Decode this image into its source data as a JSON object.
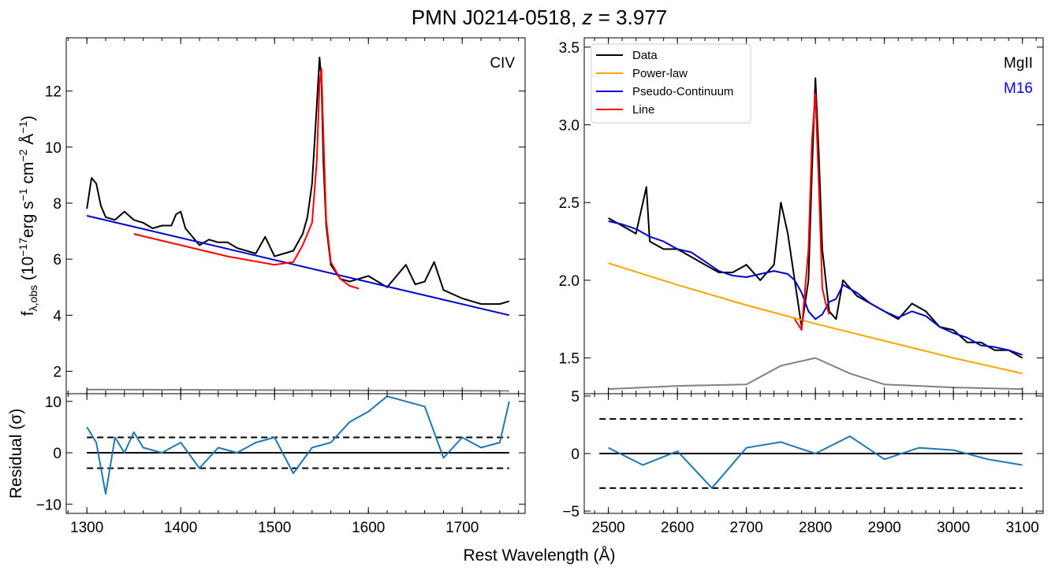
{
  "figure": {
    "title_main": "PMN J0214-0518, ",
    "title_z": "z",
    "title_eq": " = 3.977",
    "xlabel": "Rest Wavelength (Å)",
    "ylabel_top": "f",
    "ylabel_sub": "λ,obs",
    "ylabel_unit": " (10",
    "ylabel_exp1": "−17",
    "ylabel_rest1": "erg s",
    "ylabel_exp2": "−1",
    "ylabel_rest2": " cm",
    "ylabel_exp3": "−2",
    "ylabel_rest3": " Å",
    "ylabel_exp4": "−1",
    "ylabel_close": ")",
    "ylabel_resid": "Residual (σ)"
  },
  "colors": {
    "data": "#000000",
    "powerlaw": "#ffa500",
    "pseudo": "#0000cd",
    "line": "#ff0000",
    "broad": "#008000",
    "error": "#808080",
    "residual": "#1f77b4",
    "m16": "#0000ff"
  },
  "chart_data": [
    {
      "type": "line",
      "panel": "CIV spectrum",
      "label": "CIV",
      "xlim": [
        1278,
        1767
      ],
      "ylim": [
        1.2,
        13.9
      ],
      "yticks": [
        2,
        4,
        6,
        8,
        10,
        12
      ],
      "xticks": [
        1300,
        1400,
        1500,
        1600,
        1700
      ],
      "series": [
        {
          "name": "Data",
          "x": [
            1300,
            1305,
            1310,
            1315,
            1320,
            1330,
            1340,
            1350,
            1360,
            1370,
            1380,
            1390,
            1395,
            1400,
            1405,
            1410,
            1420,
            1430,
            1440,
            1450,
            1460,
            1470,
            1480,
            1490,
            1500,
            1510,
            1520,
            1530,
            1535,
            1540,
            1545,
            1548,
            1550,
            1552,
            1555,
            1560,
            1570,
            1580,
            1590,
            1600,
            1620,
            1640,
            1650,
            1660,
            1670,
            1680,
            1700,
            1720,
            1740,
            1750
          ],
          "y": [
            7.8,
            8.9,
            8.7,
            7.9,
            7.5,
            7.4,
            7.7,
            7.4,
            7.3,
            7.1,
            7.2,
            7.2,
            7.6,
            7.7,
            7.1,
            6.9,
            6.5,
            6.7,
            6.6,
            6.6,
            6.4,
            6.3,
            6.2,
            6.8,
            6.1,
            6.2,
            6.3,
            6.9,
            7.5,
            8.7,
            11.5,
            13.2,
            12.4,
            9.5,
            7.2,
            5.8,
            5.3,
            5.2,
            5.3,
            5.4,
            5.0,
            5.8,
            5.1,
            5.2,
            5.9,
            4.9,
            4.6,
            4.4,
            4.4,
            4.5
          ]
        },
        {
          "name": "Power-law",
          "x": [
            1300,
            1750
          ],
          "y": [
            7.55,
            4.0
          ]
        },
        {
          "name": "Line",
          "x": [
            1350,
            1400,
            1450,
            1500,
            1520,
            1530,
            1540,
            1545,
            1548,
            1550,
            1552,
            1555,
            1560,
            1570,
            1580,
            1590
          ],
          "y": [
            6.9,
            6.5,
            6.1,
            5.8,
            5.9,
            6.5,
            7.3,
            9.5,
            12.3,
            12.8,
            10.5,
            7.4,
            5.9,
            5.3,
            5.05,
            4.95
          ]
        },
        {
          "name": "Error",
          "x": [
            1300,
            1750
          ],
          "y": [
            1.35,
            1.3
          ]
        }
      ]
    },
    {
      "type": "line",
      "panel": "MgII spectrum",
      "label": "MgII",
      "label2": "M16",
      "xlim": [
        2465,
        3130
      ],
      "ylim": [
        1.27,
        3.56
      ],
      "yticks": [
        1.5,
        2.0,
        2.5,
        3.0,
        3.5
      ],
      "ytick_labels": [
        "1.5",
        "2.0",
        "2.5",
        "3.0",
        "3.5"
      ],
      "xticks": [
        2500,
        2600,
        2700,
        2800,
        2900,
        3000,
        3100
      ],
      "legend": {
        "position": "top-left",
        "entries": [
          "Data",
          "Power-law",
          "Pseudo-Continuum",
          "Line"
        ]
      },
      "series": [
        {
          "name": "Data",
          "x": [
            2500,
            2520,
            2540,
            2555,
            2560,
            2580,
            2600,
            2620,
            2640,
            2660,
            2680,
            2700,
            2720,
            2740,
            2750,
            2760,
            2770,
            2780,
            2790,
            2795,
            2800,
            2805,
            2810,
            2820,
            2830,
            2840,
            2860,
            2880,
            2900,
            2920,
            2940,
            2960,
            2980,
            3000,
            3020,
            3040,
            3060,
            3080,
            3100
          ],
          "y": [
            2.4,
            2.35,
            2.3,
            2.6,
            2.25,
            2.2,
            2.2,
            2.15,
            2.1,
            2.05,
            2.05,
            2.1,
            2.0,
            2.1,
            2.5,
            2.3,
            2.0,
            1.7,
            2.0,
            2.7,
            3.3,
            2.8,
            2.2,
            1.8,
            1.75,
            2.0,
            1.9,
            1.85,
            1.8,
            1.75,
            1.85,
            1.8,
            1.7,
            1.68,
            1.6,
            1.6,
            1.55,
            1.55,
            1.5
          ]
        },
        {
          "name": "Power-law",
          "x": [
            2500,
            2600,
            2700,
            2800,
            2900,
            3000,
            3100
          ],
          "y": [
            2.11,
            1.97,
            1.84,
            1.72,
            1.61,
            1.5,
            1.4
          ]
        },
        {
          "name": "Pseudo-Continuum",
          "x": [
            2500,
            2520,
            2540,
            2560,
            2580,
            2600,
            2620,
            2640,
            2660,
            2680,
            2700,
            2720,
            2740,
            2760,
            2770,
            2780,
            2790,
            2800,
            2810,
            2820,
            2830,
            2840,
            2860,
            2880,
            2900,
            2920,
            2940,
            2960,
            2980,
            3000,
            3020,
            3040,
            3060,
            3080,
            3100
          ],
          "y": [
            2.38,
            2.36,
            2.33,
            2.28,
            2.25,
            2.2,
            2.18,
            2.12,
            2.06,
            2.03,
            2.02,
            2.04,
            2.06,
            2.04,
            2.0,
            1.92,
            1.8,
            1.75,
            1.78,
            1.86,
            1.88,
            1.97,
            1.92,
            1.85,
            1.8,
            1.76,
            1.8,
            1.77,
            1.7,
            1.66,
            1.63,
            1.58,
            1.57,
            1.55,
            1.52
          ]
        },
        {
          "name": "Line",
          "x": [
            2770,
            2780,
            2790,
            2795,
            2800,
            2805,
            2810,
            2815,
            2820
          ],
          "y": [
            1.75,
            1.68,
            2.2,
            2.9,
            3.2,
            2.6,
            1.95,
            1.85,
            1.78
          ]
        },
        {
          "name": "Error",
          "x": [
            2500,
            2600,
            2700,
            2750,
            2800,
            2850,
            2900,
            3000,
            3100
          ],
          "y": [
            1.3,
            1.32,
            1.33,
            1.45,
            1.5,
            1.4,
            1.33,
            1.31,
            1.3
          ]
        }
      ]
    },
    {
      "type": "line",
      "panel": "CIV residual",
      "xlim": [
        1278,
        1767
      ],
      "ylim": [
        -11.8,
        11.5
      ],
      "yticks": [
        -10,
        0,
        10
      ],
      "ytick_labels": [
        "−10",
        "0",
        "10"
      ],
      "xticks": [
        1300,
        1400,
        1500,
        1600,
        1700
      ],
      "xtick_labels": [
        "1300",
        "1400",
        "1500",
        "1600",
        "1700"
      ],
      "hlines": [
        0,
        3,
        -3
      ],
      "series": [
        {
          "name": "Residual",
          "x": [
            1300,
            1310,
            1320,
            1330,
            1340,
            1350,
            1360,
            1380,
            1400,
            1420,
            1440,
            1460,
            1480,
            1500,
            1520,
            1540,
            1560,
            1580,
            1600,
            1620,
            1640,
            1660,
            1680,
            1700,
            1720,
            1740,
            1750
          ],
          "y": [
            5,
            2,
            -8,
            3,
            0,
            4,
            1,
            0,
            2,
            -3,
            1,
            0,
            2,
            3,
            -4,
            1,
            2,
            6,
            8,
            11,
            10,
            9,
            -1,
            3,
            1,
            2,
            10
          ]
        }
      ]
    },
    {
      "type": "line",
      "panel": "MgII residual",
      "xlim": [
        2465,
        3130
      ],
      "ylim": [
        -5.2,
        5.2
      ],
      "yticks": [
        -5,
        0,
        5
      ],
      "ytick_labels": [
        "−5",
        "0",
        "5"
      ],
      "xticks": [
        2500,
        2600,
        2700,
        2800,
        2900,
        3000,
        3100
      ],
      "xtick_labels": [
        "2500",
        "2600",
        "2700",
        "2800",
        "2900",
        "3000",
        "3100"
      ],
      "hlines": [
        0,
        3,
        -3
      ],
      "series": [
        {
          "name": "Residual",
          "x": [
            2500,
            2550,
            2600,
            2650,
            2700,
            2750,
            2800,
            2850,
            2900,
            2950,
            3000,
            3050,
            3100
          ],
          "y": [
            0.5,
            -1,
            0.2,
            -3,
            0.5,
            1,
            0,
            1.5,
            -0.5,
            0.5,
            0.3,
            -0.5,
            -1
          ]
        }
      ]
    }
  ]
}
